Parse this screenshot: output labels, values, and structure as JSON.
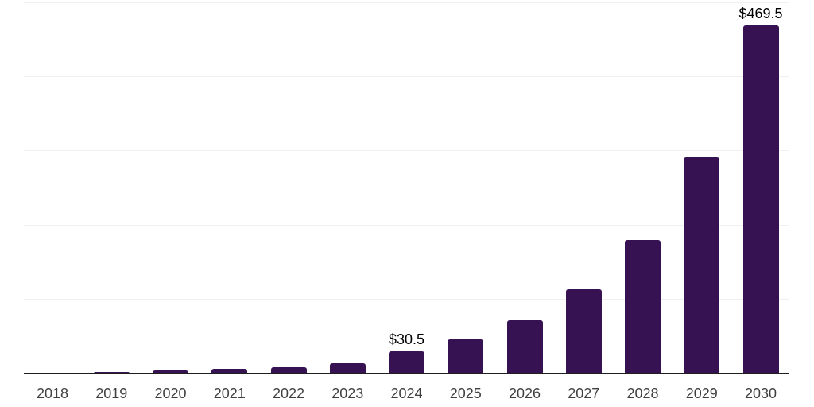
{
  "chart_data": {
    "type": "bar",
    "title": "",
    "xlabel": "",
    "ylabel": "",
    "categories": [
      "2018",
      "2019",
      "2020",
      "2021",
      "2022",
      "2023",
      "2024",
      "2025",
      "2026",
      "2027",
      "2028",
      "2029",
      "2030"
    ],
    "values": [
      1.2,
      2.6,
      4.8,
      6.1,
      8.6,
      14.3,
      30.5,
      45.8,
      71.8,
      113.5,
      180.3,
      291.4,
      469.5
    ],
    "labeled_points": [
      {
        "category": "2024",
        "label": "$30.5"
      },
      {
        "category": "2030",
        "label": "$469.5"
      }
    ],
    "ylim": [
      0,
      500
    ],
    "grid": {
      "visible": true,
      "step": 100,
      "y_tick_labels_shown": false
    },
    "legend_position": "none",
    "colors": {
      "bar": "#371253",
      "axis_line": "#1f1f1f",
      "gridline": "#f0f0f0",
      "tick_label": "#3f3f3f",
      "data_label": "#000000",
      "background": "#ffffff"
    }
  }
}
